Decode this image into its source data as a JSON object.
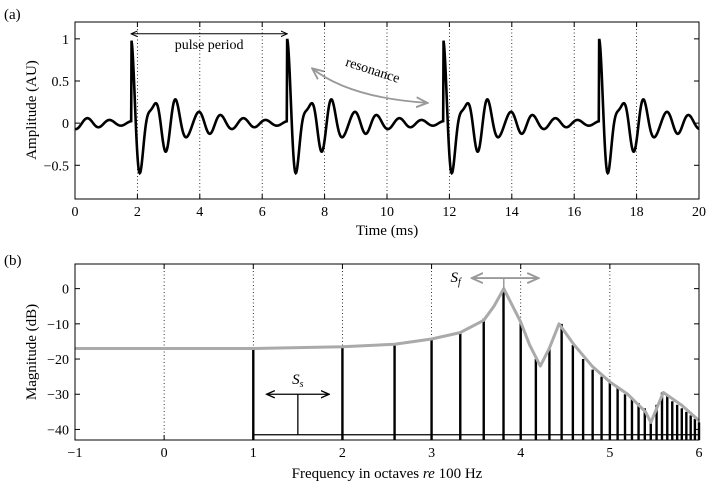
{
  "panels": {
    "a": {
      "label": "(a)"
    },
    "b": {
      "label": "(b)"
    }
  },
  "chart_data": [
    {
      "type": "line",
      "panel": "(a)",
      "xlabel": "Time (ms)",
      "ylabel": "Amplitude (AU)",
      "xlim": [
        0,
        20
      ],
      "ylim": [
        -0.9,
        1.2
      ],
      "xticks": [
        0,
        2,
        4,
        6,
        8,
        10,
        12,
        14,
        16,
        18,
        20
      ],
      "yticks": [
        -0.5,
        0,
        0.5,
        1
      ],
      "grid": "vertical dotted",
      "pulse_peaks_ms": [
        1.8,
        6.8,
        11.8,
        16.8
      ],
      "pulse_period_ms": 5,
      "peak_amplitude": 1,
      "colors": {
        "waveform": "#000000",
        "annotation_resonance": "#999999"
      },
      "annotations": {
        "pulse_period": {
          "text": "pulse period",
          "from_ms": 1.8,
          "to_ms": 6.8
        },
        "resonance": {
          "text": "resonance",
          "from_ms": 7.6,
          "to_ms": 11.3
        }
      }
    },
    {
      "type": "bar",
      "panel": "(b)",
      "xlabel_pre": "Frequency in octaves ",
      "xlabel_italic": "re",
      "xlabel_post": " 100 Hz",
      "ylabel": "Magnitude (dB)",
      "xlim": [
        -1,
        6
      ],
      "ylim": [
        -43,
        7
      ],
      "xticks": [
        -1,
        0,
        1,
        2,
        3,
        4,
        5,
        6
      ],
      "yticks": [
        0,
        -10,
        -20,
        -30,
        -40
      ],
      "grid": "vertical dotted",
      "colors": {
        "stems": "#000000",
        "envelope": "#aaaaaa"
      },
      "harmonics": {
        "octave": [
          1,
          2,
          2.585,
          3,
          3.322,
          3.585,
          3.807,
          4,
          4.17,
          4.322,
          4.459,
          4.585,
          4.7,
          4.807,
          4.907,
          5,
          5.087,
          5.17,
          5.248,
          5.322,
          5.392,
          5.459,
          5.524,
          5.585,
          5.644,
          5.7,
          5.755,
          5.807,
          5.858,
          5.907,
          5.954,
          6
        ],
        "db": [
          -17,
          -16.5,
          -15.8,
          -14.3,
          -12.5,
          -8.5,
          0,
          -9.5,
          -20,
          -17,
          -10,
          -16,
          -20,
          -23,
          -25,
          -26.5,
          -28,
          -30,
          -31,
          -32.5,
          -34,
          -38,
          -33,
          -29.5,
          -30,
          -32,
          -33,
          -34,
          -35,
          -36,
          -37,
          -38
        ]
      },
      "envelope": {
        "octave": [
          -1,
          0,
          1,
          2,
          2.585,
          3,
          3.32,
          3.585,
          3.7,
          3.81,
          4,
          4.1,
          4.22,
          4.32,
          4.43,
          4.6,
          4.8,
          5,
          5.2,
          5.4,
          5.46,
          5.6,
          5.8,
          6
        ],
        "db": [
          -17,
          -17,
          -17,
          -16.5,
          -15.8,
          -14.3,
          -12.5,
          -9,
          -5,
          0,
          -9.5,
          -16,
          -22,
          -17,
          -10,
          -16,
          -22,
          -26.5,
          -30,
          -35,
          -38,
          -29.5,
          -33,
          -37.5
        ]
      },
      "annotations": {
        "Ss": {
          "symbol": "S",
          "subscript": "s",
          "from": 1.15,
          "to": 1.85,
          "level_db": -30,
          "base_db": -41.5
        },
        "Sf": {
          "symbol": "S",
          "subscript": "f",
          "from": 3.45,
          "to": 4.2,
          "level_db": 3,
          "peak_octave": 3.81
        }
      }
    }
  ]
}
